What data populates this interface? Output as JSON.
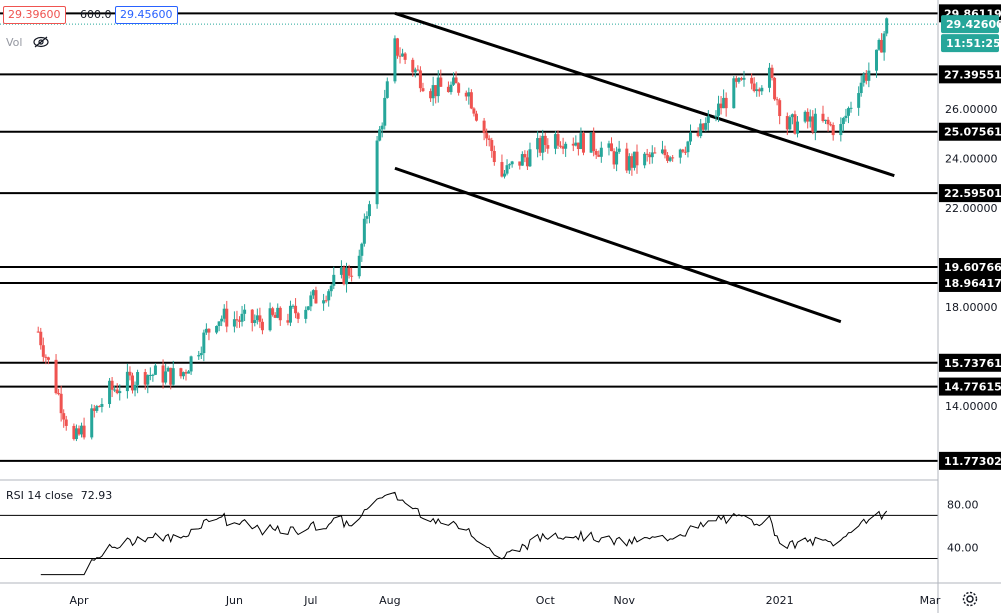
{
  "header": {
    "price_red": "29.39600",
    "volume": "600.0",
    "price_blue": "29.45600",
    "vol_label": "Vol"
  },
  "icons": {
    "visibility": "eye-off-icon",
    "settings": "gear-icon"
  },
  "colors": {
    "up": "#26a69a",
    "down": "#ef5350",
    "line": "#000000",
    "grid": "#e0e3eb",
    "accent_teal": "#26a69a",
    "accent_blue": "#2962ff"
  },
  "rsi": {
    "label": "RSI 14 close",
    "value": "72.93",
    "ticks": [
      "80.00",
      "40.00"
    ],
    "levels": [
      70,
      30
    ],
    "ylim": [
      10,
      100
    ]
  },
  "chart_data": {
    "type": "candlestick",
    "title": "",
    "xlabel": "",
    "ylabel": "",
    "ylim": [
      11.0,
      30.4
    ],
    "grid": false,
    "x_ticks": [
      "Apr",
      "Jun",
      "Jul",
      "Aug",
      "Oct",
      "Nov",
      "2021",
      "Mar"
    ],
    "y_ticks": [
      "26.00000",
      "24.00000",
      "22.00000",
      "18.00000",
      "14.00000"
    ],
    "horizontal_levels": [
      {
        "label": "29.86119",
        "value": 29.86119
      },
      {
        "label": "27.39551",
        "value": 27.39551
      },
      {
        "label": "25.07561",
        "value": 25.07561
      },
      {
        "label": "22.59501",
        "value": 22.59501
      },
      {
        "label": "19.60766",
        "value": 19.60766
      },
      {
        "label": "18.96417",
        "value": 18.96417
      },
      {
        "label": "15.73761",
        "value": 15.73761
      },
      {
        "label": "14.77615",
        "value": 14.77615
      },
      {
        "label": "11.77302",
        "value": 11.77302
      }
    ],
    "badges": [
      {
        "label": "29.42600",
        "value": 29.426,
        "color": "#26a69a"
      },
      {
        "label": "11:51:25",
        "value": 28.82,
        "color": "#26a69a"
      }
    ],
    "trendlines": [
      {
        "from": [
          "2020-08-03",
          29.86
        ],
        "to": [
          "2021-02-15",
          23.3
        ]
      },
      {
        "from": [
          "2020-08-03",
          23.6
        ],
        "to": [
          "2021-01-25",
          17.4
        ]
      }
    ],
    "series": [
      {
        "name": "",
        "x": [
          "2020-03-16",
          "2020-03-30",
          "2020-04-13",
          "2020-04-27",
          "2020-05-11",
          "2020-05-25",
          "2020-06-08",
          "2020-06-22",
          "2020-07-06",
          "2020-07-20",
          "2020-07-27",
          "2020-08-03",
          "2020-08-17",
          "2020-08-31",
          "2020-09-14",
          "2020-09-21",
          "2020-10-05",
          "2020-10-19",
          "2020-11-02",
          "2020-11-16",
          "2020-11-30",
          "2020-12-14",
          "2020-12-28",
          "2021-01-04",
          "2021-01-11",
          "2021-01-25",
          "2021-02-01",
          "2021-02-08",
          "2021-02-12"
        ],
        "values": [
          17.0,
          12.5,
          14.6,
          15.3,
          15.2,
          17.6,
          17.4,
          17.6,
          18.6,
          19.8,
          24.5,
          28.5,
          26.8,
          26.9,
          23.3,
          23.9,
          24.9,
          24.6,
          23.8,
          24.1,
          24.9,
          26.8,
          27.3,
          25.3,
          25.5,
          25.2,
          27.0,
          28.0,
          29.43
        ]
      }
    ]
  }
}
